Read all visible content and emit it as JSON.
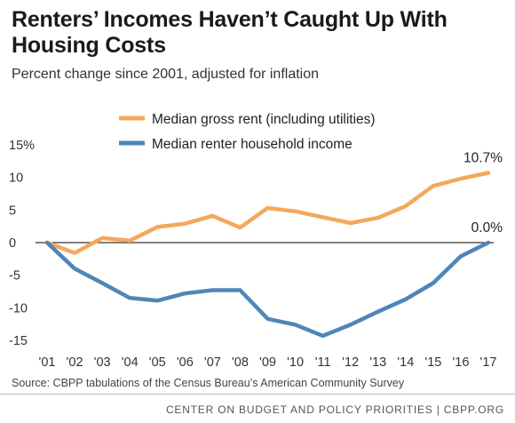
{
  "title": "Renters’ Incomes Haven’t Caught Up With Housing Costs",
  "subtitle": "Percent change since 2001, adjusted for inflation",
  "source": "Source: CBPP tabulations of the Census Bureau’s American Community Survey",
  "footer": "CENTER ON BUDGET AND POLICY PRIORITIES | CBPP.ORG",
  "colors": {
    "rent": "#f3a85a",
    "income": "#4f86b8",
    "zero_line": "#333333"
  },
  "chart_data": {
    "type": "line",
    "categories": [
      "'01",
      "'02",
      "'03",
      "'04",
      "'05",
      "'06",
      "'07",
      "'08",
      "'09",
      "'10",
      "'11",
      "'12",
      "'13",
      "'14",
      "'15",
      "'16",
      "'17"
    ],
    "series": [
      {
        "name": "Median gross rent (including utilities)",
        "color": "#f3a85a",
        "values": [
          0,
          -1.6,
          0.7,
          0.3,
          2.4,
          2.9,
          4.1,
          2.3,
          5.3,
          4.8,
          3.9,
          3.0,
          3.8,
          5.6,
          8.7,
          9.8,
          10.7
        ],
        "end_label": "10.7%"
      },
      {
        "name": "Median renter household income",
        "color": "#4f86b8",
        "values": [
          0,
          -4.0,
          -6.2,
          -8.5,
          -8.9,
          -7.8,
          -7.3,
          -7.3,
          -11.7,
          -12.6,
          -14.3,
          -12.6,
          -10.6,
          -8.7,
          -6.2,
          -2.1,
          0.0
        ],
        "end_label": "0.0%"
      }
    ],
    "y_ticks": [
      {
        "value": 15,
        "label": "15%"
      },
      {
        "value": 10,
        "label": "10"
      },
      {
        "value": 5,
        "label": "5"
      },
      {
        "value": 0,
        "label": "0"
      },
      {
        "value": -5,
        "label": "-5"
      },
      {
        "value": -10,
        "label": "-10"
      },
      {
        "value": -15,
        "label": "-15"
      }
    ],
    "ylim": [
      -15,
      15
    ],
    "grid": false,
    "legend_position": "top-center"
  }
}
